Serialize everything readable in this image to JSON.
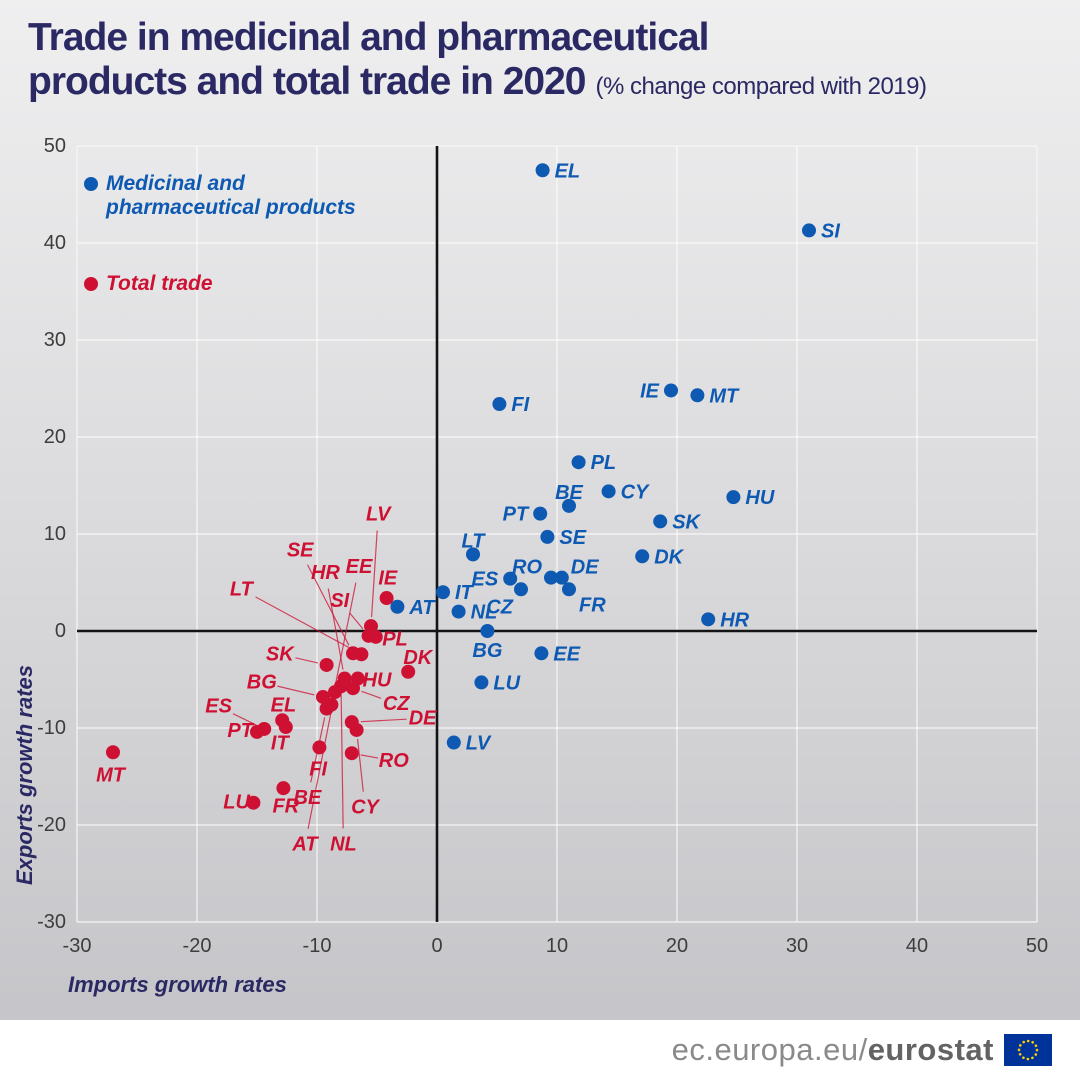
{
  "chart_data": {
    "type": "scatter",
    "title": "Trade in medicinal and pharmaceutical products and total trade in 2020",
    "title_lines": [
      "Trade in medicinal and pharmaceutical",
      "products and total trade in 2020"
    ],
    "subtitle": "(% change compared with 2019)",
    "xlabel": "Imports growth rates",
    "ylabel": "Exports growth rates",
    "xlim": [
      -30,
      50
    ],
    "ylim": [
      -30,
      50
    ],
    "xticks": [
      -30,
      -20,
      -10,
      0,
      10,
      20,
      30,
      40,
      50
    ],
    "yticks": [
      -30,
      -20,
      -10,
      0,
      10,
      20,
      30,
      40,
      50
    ],
    "grid": true,
    "legend_position": "top-left",
    "footer_brand": {
      "url_prefix": "ec.europa.eu/",
      "url_bold": "eurostat"
    },
    "series": [
      {
        "id": "pharma",
        "name": "Medicinal and pharmaceutical products",
        "color": "#0e59b2",
        "points": [
          {
            "code": "EL",
            "x": 8.8,
            "y": 47.5,
            "anchor": "r"
          },
          {
            "code": "SI",
            "x": 31.0,
            "y": 41.3,
            "anchor": "r"
          },
          {
            "code": "IE",
            "x": 19.5,
            "y": 24.8,
            "anchor": "l"
          },
          {
            "code": "MT",
            "x": 21.7,
            "y": 24.3,
            "anchor": "r"
          },
          {
            "code": "FI",
            "x": 5.2,
            "y": 23.4,
            "anchor": "r"
          },
          {
            "code": "PL",
            "x": 11.8,
            "y": 17.4,
            "anchor": "r"
          },
          {
            "code": "CY",
            "x": 14.3,
            "y": 14.4,
            "anchor": "r"
          },
          {
            "code": "HU",
            "x": 24.7,
            "y": 13.8,
            "anchor": "r"
          },
          {
            "code": "BE",
            "x": 11.0,
            "y": 12.9,
            "anchor": "a"
          },
          {
            "code": "PT",
            "x": 8.6,
            "y": 12.1,
            "anchor": "l"
          },
          {
            "code": "SK",
            "x": 18.6,
            "y": 11.3,
            "anchor": "r"
          },
          {
            "code": "SE",
            "x": 9.2,
            "y": 9.7,
            "anchor": "r"
          },
          {
            "code": "LT",
            "x": 3.0,
            "y": 7.9,
            "anchor": "a"
          },
          {
            "code": "DK",
            "x": 17.1,
            "y": 7.7,
            "anchor": "r"
          },
          {
            "code": "RO",
            "x": 9.5,
            "y": 5.5,
            "anchor": "al"
          },
          {
            "code": "DE",
            "x": 10.4,
            "y": 5.5,
            "anchor": "ar"
          },
          {
            "code": "ES",
            "x": 6.1,
            "y": 5.4,
            "anchor": "l"
          },
          {
            "code": "FR",
            "x": 11.0,
            "y": 4.3,
            "anchor": "br"
          },
          {
            "code": "CZ",
            "x": 7.0,
            "y": 4.3,
            "anchor": "bl"
          },
          {
            "code": "IT",
            "x": 0.5,
            "y": 4.0,
            "anchor": "r"
          },
          {
            "code": "AT",
            "x": -3.3,
            "y": 2.5,
            "anchor": "r"
          },
          {
            "code": "NL",
            "x": 1.8,
            "y": 2.0,
            "anchor": "r"
          },
          {
            "code": "HR",
            "x": 22.6,
            "y": 1.2,
            "anchor": "r"
          },
          {
            "code": "BG",
            "x": 4.2,
            "y": 0.0,
            "anchor": "b"
          },
          {
            "code": "EE",
            "x": 8.7,
            "y": -2.3,
            "anchor": "r"
          },
          {
            "code": "LU",
            "x": 3.7,
            "y": -5.3,
            "anchor": "r"
          },
          {
            "code": "LV",
            "x": 1.4,
            "y": -11.5,
            "anchor": "r"
          }
        ]
      },
      {
        "id": "total",
        "name": "Total trade",
        "color": "#ce1133",
        "points": [
          {
            "code": "MT",
            "x": -27.0,
            "y": -12.5,
            "lx": -27.2,
            "ly": -14.9,
            "leader": false
          },
          {
            "code": "LU",
            "x": -15.3,
            "y": -17.7,
            "lx": -16.7,
            "ly": -17.7,
            "leader": false
          },
          {
            "code": "FR",
            "x": -12.8,
            "y": -16.2,
            "lx": -12.6,
            "ly": -18.1,
            "leader": false
          },
          {
            "code": "BE",
            "x": -9.2,
            "y": -8.0,
            "lx": -10.8,
            "ly": -17.2,
            "leader": true
          },
          {
            "code": "AT",
            "x": -8.5,
            "y": -6.3,
            "lx": -11.0,
            "ly": -22.0,
            "leader": true
          },
          {
            "code": "NL",
            "x": -8.0,
            "y": -5.7,
            "lx": -7.8,
            "ly": -22.0,
            "leader": true
          },
          {
            "code": "CY",
            "x": -6.7,
            "y": -10.2,
            "lx": -6.0,
            "ly": -18.2,
            "leader": true
          },
          {
            "code": "RO",
            "x": -7.1,
            "y": -12.6,
            "lx": -3.6,
            "ly": -13.4,
            "leader": true
          },
          {
            "code": "FI",
            "x": -9.8,
            "y": -12.0,
            "lx": -9.9,
            "ly": -14.3,
            "leader": false
          },
          {
            "code": "IT",
            "x": -12.6,
            "y": -9.9,
            "lx": -13.1,
            "ly": -11.6,
            "leader": false
          },
          {
            "code": "PT",
            "x": -15.0,
            "y": -10.4,
            "lx": -16.4,
            "ly": -10.3,
            "leader": false
          },
          {
            "code": "ES",
            "x": -14.4,
            "y": -10.1,
            "lx": -18.2,
            "ly": -7.8,
            "leader": true
          },
          {
            "code": "EL",
            "x": -12.9,
            "y": -9.2,
            "lx": -12.8,
            "ly": -7.7,
            "leader": false
          },
          {
            "code": "BG",
            "x": -9.5,
            "y": -6.8,
            "lx": -14.6,
            "ly": -5.3,
            "leader": true
          },
          {
            "code": "SK",
            "x": -9.2,
            "y": -3.5,
            "lx": -13.1,
            "ly": -2.4,
            "leader": true
          },
          {
            "code": "HU",
            "x": -6.6,
            "y": -4.9,
            "lx": -5.0,
            "ly": -5.1,
            "leader": false
          },
          {
            "code": "CZ",
            "x": -7.0,
            "y": -5.9,
            "lx": -3.4,
            "ly": -7.5,
            "leader": true
          },
          {
            "code": "DE",
            "x": -7.1,
            "y": -9.4,
            "lx": -1.2,
            "ly": -9.0,
            "leader": true
          },
          {
            "code": "DK",
            "x": -2.4,
            "y": -4.2,
            "lx": -1.6,
            "ly": -2.8,
            "leader": false
          },
          {
            "code": "LT",
            "x": -6.3,
            "y": -2.4,
            "lx": -16.3,
            "ly": 4.3,
            "leader": true
          },
          {
            "code": "SE",
            "x": -7.0,
            "y": -2.3,
            "lx": -11.4,
            "ly": 8.3,
            "leader": true
          },
          {
            "code": "HR",
            "x": -7.7,
            "y": -4.9,
            "lx": -9.3,
            "ly": 6.0,
            "leader": true
          },
          {
            "code": "EE",
            "x": -8.8,
            "y": -7.6,
            "lx": -6.5,
            "ly": 6.6,
            "leader": true
          },
          {
            "code": "SI",
            "x": -5.7,
            "y": -0.5,
            "lx": -8.1,
            "ly": 3.1,
            "leader": true
          },
          {
            "code": "IE",
            "x": -4.2,
            "y": 3.4,
            "lx": -4.1,
            "ly": 5.4,
            "leader": false
          },
          {
            "code": "LV",
            "x": -5.5,
            "y": 0.5,
            "lx": -4.9,
            "ly": 12.0,
            "leader": true
          },
          {
            "code": "PL",
            "x": -5.1,
            "y": -0.6,
            "lx": -3.5,
            "ly": -0.9,
            "leader": false
          }
        ]
      }
    ]
  }
}
